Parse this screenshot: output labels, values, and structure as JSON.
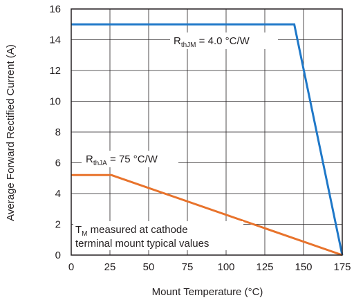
{
  "chart_data": {
    "type": "line",
    "xlabel": "Mount Temperature (°C)",
    "ylabel": "Average Forward Rectified Current (A)",
    "xlim": [
      0,
      175
    ],
    "ylim": [
      0,
      16
    ],
    "xticks": [
      "0",
      "25",
      "50",
      "75",
      "100",
      "125",
      "150",
      "175"
    ],
    "yticks": [
      "0",
      "2",
      "4",
      "6",
      "8",
      "10",
      "12",
      "14",
      "16"
    ],
    "grid": true,
    "series": [
      {
        "color": "#1f78c8",
        "points": [
          [
            0,
            15.0
          ],
          [
            144,
            15.0
          ],
          [
            175,
            0
          ]
        ]
      },
      {
        "color": "#e8732c",
        "points": [
          [
            0,
            5.2
          ],
          [
            26,
            5.2
          ],
          [
            175,
            0
          ]
        ]
      }
    ],
    "annotations": {
      "rthjm": {
        "main": "R",
        "sub": "thJM",
        "rest": " = 4.0 °C/W"
      },
      "rthja": {
        "main": "R",
        "sub": "thJA",
        "rest": " = 75 °C/W"
      },
      "note": {
        "main": "T",
        "sub": "M",
        "rest": " measured at cathode",
        "line2": "terminal mount typical values"
      }
    }
  }
}
